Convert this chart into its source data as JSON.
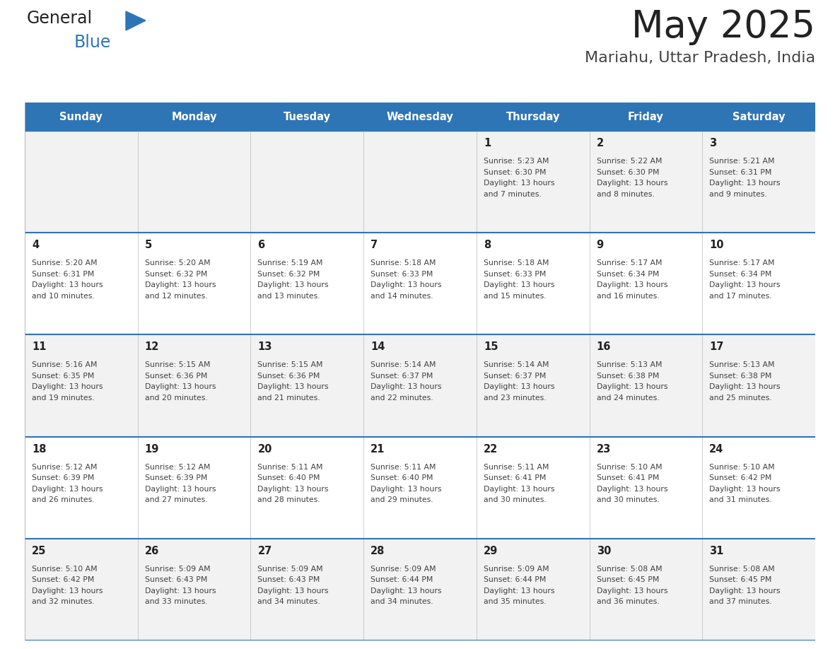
{
  "title": "May 2025",
  "subtitle": "Mariahu, Uttar Pradesh, India",
  "days_of_week": [
    "Sunday",
    "Monday",
    "Tuesday",
    "Wednesday",
    "Thursday",
    "Friday",
    "Saturday"
  ],
  "header_bg": "#2E75B6",
  "header_text": "#FFFFFF",
  "row_bg_odd": "#F2F2F2",
  "row_bg_even": "#FFFFFF",
  "row_divider": "#2E75B6",
  "day_num_color": "#222222",
  "cell_text_color": "#404040",
  "title_color": "#222222",
  "subtitle_color": "#444444",
  "logo_general_color": "#222222",
  "logo_blue_color": "#2E75B6",
  "calendar": [
    [
      null,
      null,
      null,
      null,
      {
        "day": 1,
        "sunrise": "5:23 AM",
        "sunset": "6:30 PM",
        "daylight": "13 hours and 7 minutes"
      },
      {
        "day": 2,
        "sunrise": "5:22 AM",
        "sunset": "6:30 PM",
        "daylight": "13 hours and 8 minutes"
      },
      {
        "day": 3,
        "sunrise": "5:21 AM",
        "sunset": "6:31 PM",
        "daylight": "13 hours and 9 minutes"
      }
    ],
    [
      {
        "day": 4,
        "sunrise": "5:20 AM",
        "sunset": "6:31 PM",
        "daylight": "13 hours and 10 minutes"
      },
      {
        "day": 5,
        "sunrise": "5:20 AM",
        "sunset": "6:32 PM",
        "daylight": "13 hours and 12 minutes"
      },
      {
        "day": 6,
        "sunrise": "5:19 AM",
        "sunset": "6:32 PM",
        "daylight": "13 hours and 13 minutes"
      },
      {
        "day": 7,
        "sunrise": "5:18 AM",
        "sunset": "6:33 PM",
        "daylight": "13 hours and 14 minutes"
      },
      {
        "day": 8,
        "sunrise": "5:18 AM",
        "sunset": "6:33 PM",
        "daylight": "13 hours and 15 minutes"
      },
      {
        "day": 9,
        "sunrise": "5:17 AM",
        "sunset": "6:34 PM",
        "daylight": "13 hours and 16 minutes"
      },
      {
        "day": 10,
        "sunrise": "5:17 AM",
        "sunset": "6:34 PM",
        "daylight": "13 hours and 17 minutes"
      }
    ],
    [
      {
        "day": 11,
        "sunrise": "5:16 AM",
        "sunset": "6:35 PM",
        "daylight": "13 hours and 19 minutes"
      },
      {
        "day": 12,
        "sunrise": "5:15 AM",
        "sunset": "6:36 PM",
        "daylight": "13 hours and 20 minutes"
      },
      {
        "day": 13,
        "sunrise": "5:15 AM",
        "sunset": "6:36 PM",
        "daylight": "13 hours and 21 minutes"
      },
      {
        "day": 14,
        "sunrise": "5:14 AM",
        "sunset": "6:37 PM",
        "daylight": "13 hours and 22 minutes"
      },
      {
        "day": 15,
        "sunrise": "5:14 AM",
        "sunset": "6:37 PM",
        "daylight": "13 hours and 23 minutes"
      },
      {
        "day": 16,
        "sunrise": "5:13 AM",
        "sunset": "6:38 PM",
        "daylight": "13 hours and 24 minutes"
      },
      {
        "day": 17,
        "sunrise": "5:13 AM",
        "sunset": "6:38 PM",
        "daylight": "13 hours and 25 minutes"
      }
    ],
    [
      {
        "day": 18,
        "sunrise": "5:12 AM",
        "sunset": "6:39 PM",
        "daylight": "13 hours and 26 minutes"
      },
      {
        "day": 19,
        "sunrise": "5:12 AM",
        "sunset": "6:39 PM",
        "daylight": "13 hours and 27 minutes"
      },
      {
        "day": 20,
        "sunrise": "5:11 AM",
        "sunset": "6:40 PM",
        "daylight": "13 hours and 28 minutes"
      },
      {
        "day": 21,
        "sunrise": "5:11 AM",
        "sunset": "6:40 PM",
        "daylight": "13 hours and 29 minutes"
      },
      {
        "day": 22,
        "sunrise": "5:11 AM",
        "sunset": "6:41 PM",
        "daylight": "13 hours and 30 minutes"
      },
      {
        "day": 23,
        "sunrise": "5:10 AM",
        "sunset": "6:41 PM",
        "daylight": "13 hours and 30 minutes"
      },
      {
        "day": 24,
        "sunrise": "5:10 AM",
        "sunset": "6:42 PM",
        "daylight": "13 hours and 31 minutes"
      }
    ],
    [
      {
        "day": 25,
        "sunrise": "5:10 AM",
        "sunset": "6:42 PM",
        "daylight": "13 hours and 32 minutes"
      },
      {
        "day": 26,
        "sunrise": "5:09 AM",
        "sunset": "6:43 PM",
        "daylight": "13 hours and 33 minutes"
      },
      {
        "day": 27,
        "sunrise": "5:09 AM",
        "sunset": "6:43 PM",
        "daylight": "13 hours and 34 minutes"
      },
      {
        "day": 28,
        "sunrise": "5:09 AM",
        "sunset": "6:44 PM",
        "daylight": "13 hours and 34 minutes"
      },
      {
        "day": 29,
        "sunrise": "5:09 AM",
        "sunset": "6:44 PM",
        "daylight": "13 hours and 35 minutes"
      },
      {
        "day": 30,
        "sunrise": "5:08 AM",
        "sunset": "6:45 PM",
        "daylight": "13 hours and 36 minutes"
      },
      {
        "day": 31,
        "sunrise": "5:08 AM",
        "sunset": "6:45 PM",
        "daylight": "13 hours and 37 minutes"
      }
    ]
  ]
}
